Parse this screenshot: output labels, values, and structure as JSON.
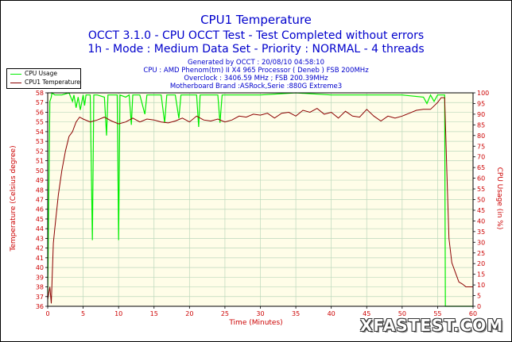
{
  "header": {
    "title": "CPU1 Temperature",
    "subtitle1": "OCCT 3.1.0 - CPU OCCT Test - Test Completed without errors",
    "subtitle2": "1h - Mode : Medium Data Set - Priority : NORMAL - 4 threads"
  },
  "info": {
    "generated": "Generated by OCCT : 20/08/10 04:58:10",
    "cpu": "CPU : AMD Phenom(tm) II X4 965 Processor ( Deneb ) FSB 200MHz",
    "overclock": "Overclock : 3406.59 MHz ; FSB 200.39MHz",
    "motherboard": "Motherboard Brand :ASRock,Serie :880G Extreme3"
  },
  "watermark": "XFASTEST.COM",
  "colors": {
    "cpu_usage": "#00ee00",
    "cpu_temp": "#8b0000",
    "plot_bg": "#fffde8",
    "grid": "#bcd8bc",
    "text_blue": "#0000cc",
    "axis_red": "#cc0000"
  },
  "chart_data": {
    "type": "line",
    "xlabel": "Time (Minutes)",
    "ylabel": "Temperature (Celsius degree)",
    "y2label": "CPU Usage (in %)",
    "xlim": [
      0,
      60
    ],
    "ylim": [
      36,
      58
    ],
    "y2lim": [
      0,
      100
    ],
    "x_ticks": [
      0,
      5,
      10,
      15,
      20,
      25,
      30,
      35,
      40,
      45,
      50,
      55,
      60
    ],
    "y_ticks": [
      36,
      37,
      38,
      39,
      40,
      41,
      42,
      43,
      44,
      45,
      46,
      47,
      48,
      49,
      50,
      51,
      52,
      53,
      54,
      55,
      56,
      57,
      58
    ],
    "y2_ticks": [
      0,
      5,
      10,
      15,
      20,
      25,
      30,
      35,
      40,
      45,
      50,
      55,
      60,
      65,
      70,
      75,
      80,
      85,
      90,
      95,
      100
    ],
    "grid": true,
    "legend_position": "top-left",
    "series": [
      {
        "name": "CPU Usage",
        "axis": "right",
        "x": [
          0,
          0.3,
          0.5,
          0.6,
          1,
          2,
          3,
          3.5,
          3.7,
          4,
          4.3,
          4.6,
          5,
          5.2,
          5.4,
          6,
          6.3,
          6.5,
          6.7,
          7,
          8,
          8.3,
          8.5,
          8.7,
          9,
          9.8,
          10,
          10.2,
          11,
          11.5,
          11.8,
          12,
          13,
          13.7,
          14,
          14.3,
          15,
          16,
          16.5,
          16.8,
          17,
          18,
          18.5,
          18.8,
          19,
          20,
          21,
          21.3,
          21.5,
          22,
          23,
          24,
          24.3,
          24.6,
          25,
          27,
          30,
          35,
          40,
          45,
          50,
          53,
          53.5,
          54,
          54.5,
          55,
          55.5,
          55.8,
          56,
          56.1,
          56.2,
          60
        ],
        "values": [
          6,
          96,
          98,
          100,
          99,
          99,
          100,
          96,
          99,
          93,
          98,
          92,
          99,
          94,
          99,
          99,
          31,
          99,
          99,
          99,
          98,
          80,
          99,
          99,
          99,
          99,
          31,
          99,
          98,
          99,
          85,
          99,
          99,
          90,
          99,
          99,
          99,
          99,
          86,
          99,
          99,
          99,
          88,
          99,
          99,
          99,
          99,
          84,
          99,
          99,
          99,
          99,
          86,
          99,
          99,
          99,
          99,
          100,
          99,
          99,
          99,
          98,
          95,
          99,
          96,
          99,
          99,
          99,
          99,
          0,
          0,
          0
        ]
      },
      {
        "name": "CPU1 Temperature",
        "axis": "left",
        "x": [
          0,
          0.3,
          0.5,
          0.8,
          1,
          1.5,
          2,
          2.5,
          3,
          3.5,
          4,
          4.5,
          5,
          6,
          7,
          8,
          9,
          10,
          11,
          12,
          13,
          14,
          15,
          16,
          17,
          18,
          19,
          20,
          21,
          22,
          23,
          24,
          25,
          26,
          27,
          28,
          29,
          30,
          31,
          32,
          33,
          34,
          35,
          36,
          37,
          38,
          39,
          40,
          41,
          42,
          43,
          44,
          45,
          46,
          47,
          48,
          49,
          50,
          51,
          52,
          53,
          54,
          55,
          55.5,
          56,
          56.3,
          56.6,
          57,
          57.5,
          58,
          58.5,
          59,
          60
        ],
        "values": [
          36.7,
          38.0,
          36.3,
          42.5,
          44.0,
          47.5,
          50.0,
          52.0,
          53.5,
          54.0,
          55.0,
          55.5,
          55.3,
          55.0,
          55.2,
          55.5,
          55.1,
          54.8,
          55.0,
          55.4,
          55.0,
          55.3,
          55.2,
          55.0,
          54.9,
          55.1,
          55.4,
          55.0,
          55.6,
          55.2,
          55.1,
          55.3,
          55.0,
          55.2,
          55.6,
          55.5,
          55.8,
          55.7,
          55.9,
          55.4,
          55.9,
          56.0,
          55.6,
          56.2,
          56.0,
          56.4,
          55.8,
          56.0,
          55.4,
          56.1,
          55.6,
          55.5,
          56.3,
          55.6,
          55.1,
          55.6,
          55.4,
          55.6,
          55.9,
          56.2,
          56.3,
          56.3,
          57.0,
          57.5,
          57.5,
          50.0,
          43.0,
          40.5,
          39.5,
          38.5,
          38.3,
          38.0,
          38.0
        ]
      }
    ]
  }
}
